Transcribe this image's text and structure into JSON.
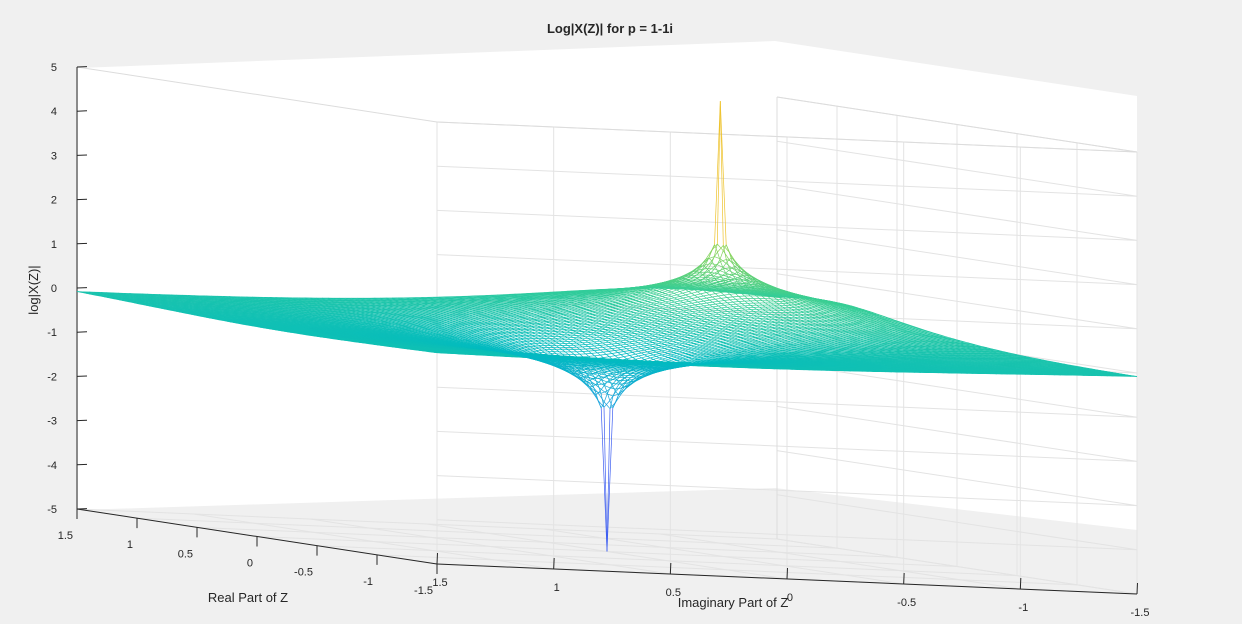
{
  "chart_data": {
    "type": "surface",
    "title": "Log|X(Z)| for p = 1-1i",
    "xlabel": "Real Part of Z",
    "ylabel": "Imaginary Part of Z",
    "zlabel": "log|X(Z)|",
    "xlim": [
      -1.5,
      1.5
    ],
    "ylim": [
      -1.5,
      1.5
    ],
    "zlim": [
      -5,
      5
    ],
    "x_ticks": [
      "-1.5",
      "-1",
      "-0.5",
      "0",
      "0.5",
      "1",
      "1.5"
    ],
    "y_ticks": [
      "-1.5",
      "-1",
      "-0.5",
      "0",
      "0.5",
      "1",
      "1.5"
    ],
    "z_ticks": [
      "-5",
      "-4",
      "-3",
      "-2",
      "-1",
      "0",
      "1",
      "2",
      "3",
      "4",
      "5"
    ],
    "pole": [
      1,
      -1
    ],
    "zero": [
      0,
      0
    ],
    "surface": "log10(|Z| / |Z - p|)",
    "colormap": "parula",
    "grid": true
  }
}
